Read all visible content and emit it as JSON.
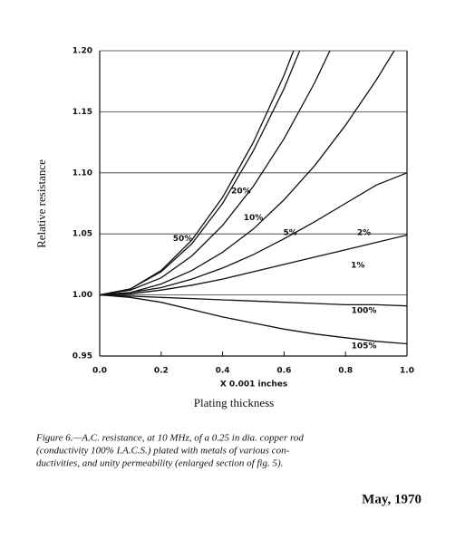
{
  "chart_data": {
    "type": "line",
    "ylabel": "Relative resistance",
    "xlabel": "X 0.001 inches",
    "xlabel2": "Plating thickness",
    "x": [
      0,
      0.1,
      0.2,
      0.3,
      0.4,
      0.5,
      0.6,
      0.7,
      0.8,
      0.9,
      1.0
    ],
    "series": [
      {
        "name": "50%",
        "color": "#111111",
        "values": [
          1.0,
          1.005,
          1.02,
          1.045,
          1.08,
          1.125,
          1.18,
          1.245,
          null,
          null,
          null
        ]
      },
      {
        "name": "20%",
        "color": "#111111",
        "values": [
          1.0,
          1.005,
          1.019,
          1.042,
          1.075,
          1.118,
          1.169,
          1.23,
          null,
          null,
          null
        ]
      },
      {
        "name": "10%",
        "color": "#111111",
        "values": [
          1.0,
          1.004,
          1.014,
          1.032,
          1.057,
          1.089,
          1.128,
          1.174,
          1.227,
          null,
          null
        ]
      },
      {
        "name": "5%",
        "color": "#111111",
        "values": [
          1.0,
          1.002,
          1.009,
          1.02,
          1.035,
          1.054,
          1.078,
          1.106,
          1.139,
          1.176,
          1.217
        ]
      },
      {
        "name": "2%",
        "color": "#111111",
        "values": [
          1.0,
          1.002,
          1.006,
          1.013,
          1.022,
          1.033,
          1.046,
          1.06,
          1.075,
          1.09,
          1.1
        ]
      },
      {
        "name": "1%",
        "color": "#111111",
        "values": [
          1.0,
          1.001,
          1.004,
          1.008,
          1.013,
          1.019,
          1.025,
          1.031,
          1.037,
          1.043,
          1.049
        ]
      },
      {
        "name": "100%",
        "color": "#111111",
        "values": [
          1.0,
          0.999,
          0.998,
          0.997,
          0.996,
          0.995,
          0.994,
          0.993,
          0.992,
          0.992,
          0.991
        ]
      },
      {
        "name": "105%",
        "color": "#111111",
        "values": [
          1.0,
          0.998,
          0.994,
          0.988,
          0.982,
          0.977,
          0.972,
          0.968,
          0.965,
          0.962,
          0.96
        ]
      }
    ],
    "xlim": [
      0,
      1.0
    ],
    "xticks": [
      {
        "value": 0,
        "label": "0.0"
      },
      0.2,
      0.4,
      0.6,
      0.8,
      {
        "value": 1.0,
        "label": "1.0"
      }
    ],
    "ylim": [
      0.95,
      1.2
    ],
    "yticks": [
      0.95,
      {
        "value": 1.0,
        "label": "1.00"
      },
      1.05,
      {
        "value": 1.1,
        "label": "1.10"
      },
      1.15,
      {
        "value": 1.2,
        "label": "1.20"
      }
    ],
    "grid": true
  },
  "caption": [
    "Figure 6.—A.C. resistance, at 10 MHz, of a 0.25 in dia. copper rod",
    "(conductivity 100% I.A.C.S.) plated with metals of various con-",
    "ductivities, and unity permeability (enlarged section of fig. 5)."
  ],
  "date": "May, 1970"
}
